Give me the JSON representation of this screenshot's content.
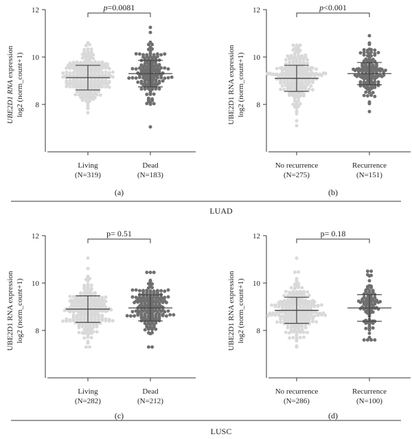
{
  "figure": {
    "group_labels": [
      "LUAD",
      "LUSC"
    ],
    "colors": {
      "group_a": "#d9d9d9",
      "group_b": "#6f6f6f",
      "axis": "#333333",
      "summary_bar": "#444444"
    }
  },
  "chart_data": [
    {
      "type": "scatter",
      "panel_label": "(a)",
      "ylabel_italic": "UBE2D1 RNA",
      "ylabel_rest": " expression",
      "ylabel_line2": "log2 (norm_count+1)",
      "ylim": [
        6,
        12
      ],
      "yticks": [
        8,
        10,
        12
      ],
      "categories": [
        "Living",
        "Dead"
      ],
      "category_n": [
        "(N=319)",
        "(N=183)"
      ],
      "pvalue_italic": "p",
      "pvalue_rest": "=0.0081",
      "series": [
        {
          "n": 319,
          "mean": 9.13,
          "sd": 0.52,
          "min": 7.65,
          "max": 10.6
        },
        {
          "n": 183,
          "mean": 9.3,
          "sd": 0.56,
          "min": 7.05,
          "max": 11.25
        }
      ]
    },
    {
      "type": "scatter",
      "panel_label": "(b)",
      "ylabel_italic": "",
      "ylabel_rest": "UBE2D1 RNA expression",
      "ylabel_line2": "log2 (norm_count+1)",
      "ylim": [
        6,
        12
      ],
      "yticks": [
        8,
        10,
        12
      ],
      "categories": [
        "No recurrence",
        "Recurrence"
      ],
      "category_n": [
        "(N=275)",
        "(N=151)"
      ],
      "pvalue_italic": "p",
      "pvalue_rest": "<0.001",
      "series": [
        {
          "n": 275,
          "mean": 9.1,
          "sd": 0.55,
          "min": 7.1,
          "max": 10.5
        },
        {
          "n": 151,
          "mean": 9.3,
          "sd": 0.47,
          "min": 7.7,
          "max": 10.9
        }
      ]
    },
    {
      "type": "scatter",
      "panel_label": "(c)",
      "ylabel_italic": "",
      "ylabel_rest": "UBE2D1 RNA expression",
      "ylabel_line2": "log2 (norm_count+1)",
      "ylim": [
        6,
        12
      ],
      "yticks": [
        8,
        10,
        12
      ],
      "categories": [
        "Living",
        "Dead"
      ],
      "category_n": [
        "(N=282)",
        "(N=212)"
      ],
      "pvalue_italic": "",
      "pvalue_rest": "p= 0.51",
      "series": [
        {
          "n": 282,
          "mean": 8.9,
          "sd": 0.56,
          "min": 7.3,
          "max": 11.05
        },
        {
          "n": 212,
          "mean": 8.95,
          "sd": 0.55,
          "min": 7.3,
          "max": 10.45
        }
      ]
    },
    {
      "type": "scatter",
      "panel_label": "(d)",
      "ylabel_italic": "",
      "ylabel_rest": "UBE2D1 RNA expression",
      "ylabel_line2": "log2 (norm_count+1)",
      "ylim": [
        6,
        12
      ],
      "yticks": [
        8,
        10,
        12
      ],
      "categories": [
        "No recurrence",
        "Recurrence"
      ],
      "category_n": [
        "(N=286)",
        "(N=100)"
      ],
      "pvalue_italic": "",
      "pvalue_rest": "p= 0.18",
      "series": [
        {
          "n": 286,
          "mean": 8.85,
          "sd": 0.55,
          "min": 7.3,
          "max": 11.05
        },
        {
          "n": 100,
          "mean": 8.95,
          "sd": 0.56,
          "min": 7.6,
          "max": 10.5
        }
      ]
    }
  ]
}
